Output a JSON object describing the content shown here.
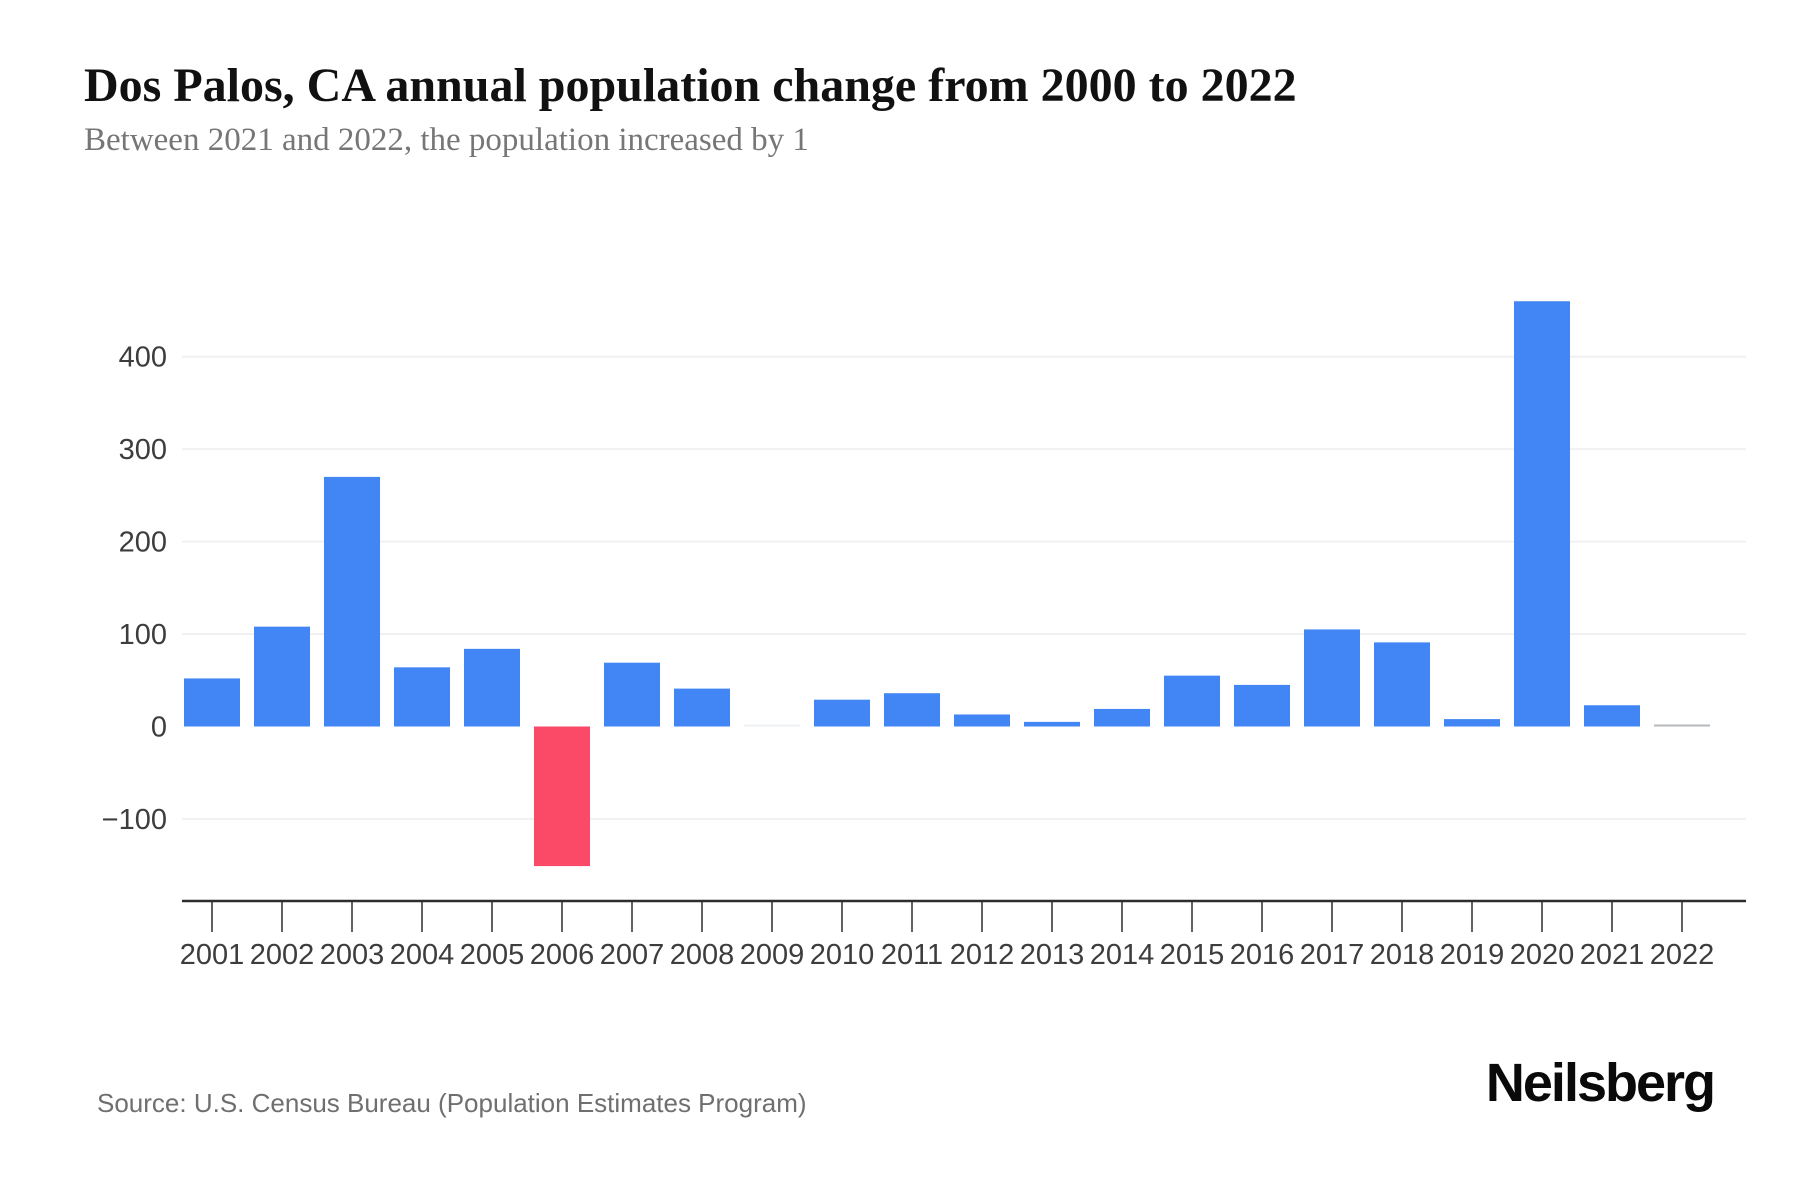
{
  "header": {
    "title": "Dos Palos, CA annual population change from 2000 to 2022",
    "subtitle": "Between 2021 and 2022, the population increased by 1"
  },
  "footer": {
    "source": "Source: U.S. Census Bureau (Population Estimates Program)",
    "brand": "Neilsberg"
  },
  "chart_data": {
    "type": "bar",
    "title": "Dos Palos, CA annual population change from 2000 to 2022",
    "categories": [
      "2001",
      "2002",
      "2003",
      "2004",
      "2005",
      "2006",
      "2007",
      "2008",
      "2009",
      "2010",
      "2011",
      "2012",
      "2013",
      "2014",
      "2015",
      "2016",
      "2017",
      "2018",
      "2019",
      "2020",
      "2021",
      "2022"
    ],
    "values": [
      52,
      108,
      270,
      64,
      84,
      -151,
      69,
      41,
      0,
      29,
      36,
      13,
      5,
      19,
      55,
      45,
      105,
      91,
      8,
      460,
      23,
      1
    ],
    "bar_colors": [
      "#4285F4",
      "#4285F4",
      "#4285F4",
      "#4285F4",
      "#4285F4",
      "#FA4A68",
      "#4285F4",
      "#4285F4",
      "#EDF1F3",
      "#4285F4",
      "#4285F4",
      "#4285F4",
      "#4285F4",
      "#4285F4",
      "#4285F4",
      "#4285F4",
      "#4285F4",
      "#4285F4",
      "#4285F4",
      "#4285F4",
      "#4285F4",
      "#B5B9BC"
    ],
    "yticks": [
      {
        "value": 400,
        "label": "400"
      },
      {
        "value": 300,
        "label": "300"
      },
      {
        "value": 200,
        "label": "200"
      },
      {
        "value": 100,
        "label": "100"
      },
      {
        "value": 0,
        "label": "0"
      },
      {
        "value": -100,
        "label": "−100"
      }
    ],
    "ylim": [
      -190,
      530
    ],
    "xlabel": "",
    "ylabel": "",
    "grid": "horizontal-only, no line at 0",
    "legend": "none",
    "accent_positive": "#4285F4",
    "accent_negative": "#FA4A68"
  }
}
